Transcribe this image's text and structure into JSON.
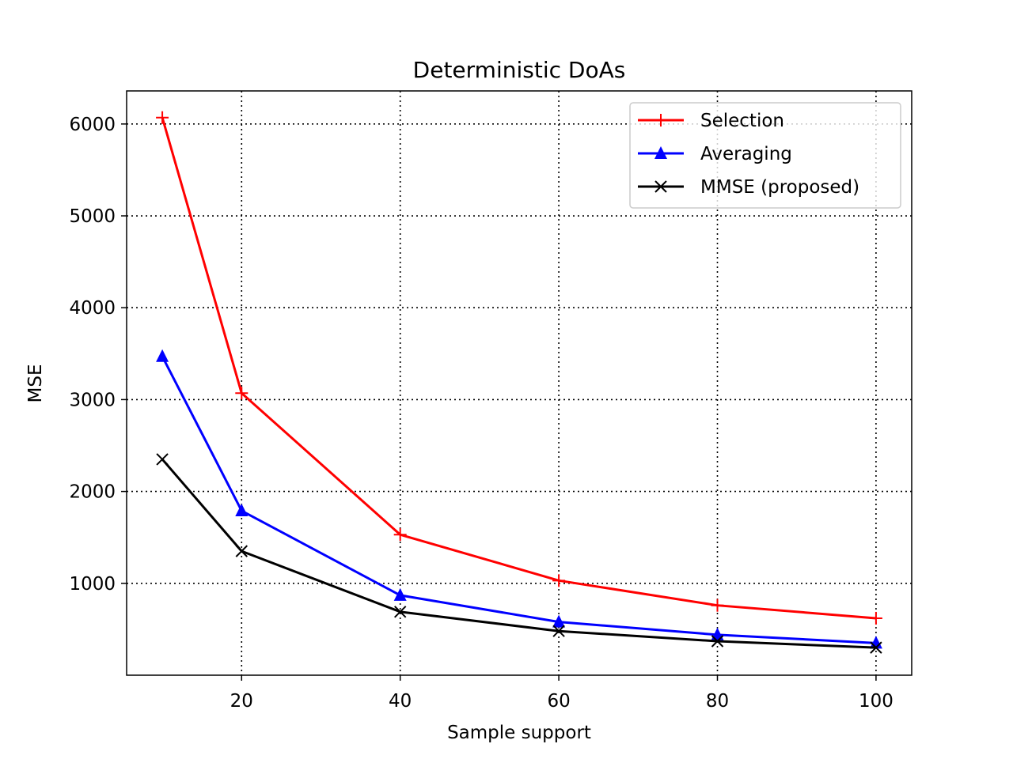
{
  "chart_data": {
    "type": "line",
    "title": "Deterministic DoAs",
    "xlabel": "Sample support",
    "ylabel": "MSE",
    "xlim": [
      5.5,
      104.5
    ],
    "ylim": [
      0,
      6360
    ],
    "xticks": [
      20,
      40,
      60,
      80,
      100
    ],
    "yticks": [
      1000,
      2000,
      3000,
      4000,
      5000,
      6000
    ],
    "grid": true,
    "legend_position": "top-right",
    "x": [
      10,
      20,
      40,
      60,
      80,
      100
    ],
    "series": [
      {
        "name": "Selection",
        "color": "#ff0000",
        "marker": "plus",
        "values": [
          6070,
          3070,
          1530,
          1030,
          760,
          620
        ]
      },
      {
        "name": "Averaging",
        "color": "#0000ff",
        "marker": "triangle-up",
        "values": [
          3470,
          1790,
          870,
          580,
          440,
          350
        ]
      },
      {
        "name": "MMSE (proposed)",
        "color": "#000000",
        "marker": "x",
        "values": [
          2350,
          1350,
          690,
          480,
          370,
          300
        ]
      }
    ]
  }
}
